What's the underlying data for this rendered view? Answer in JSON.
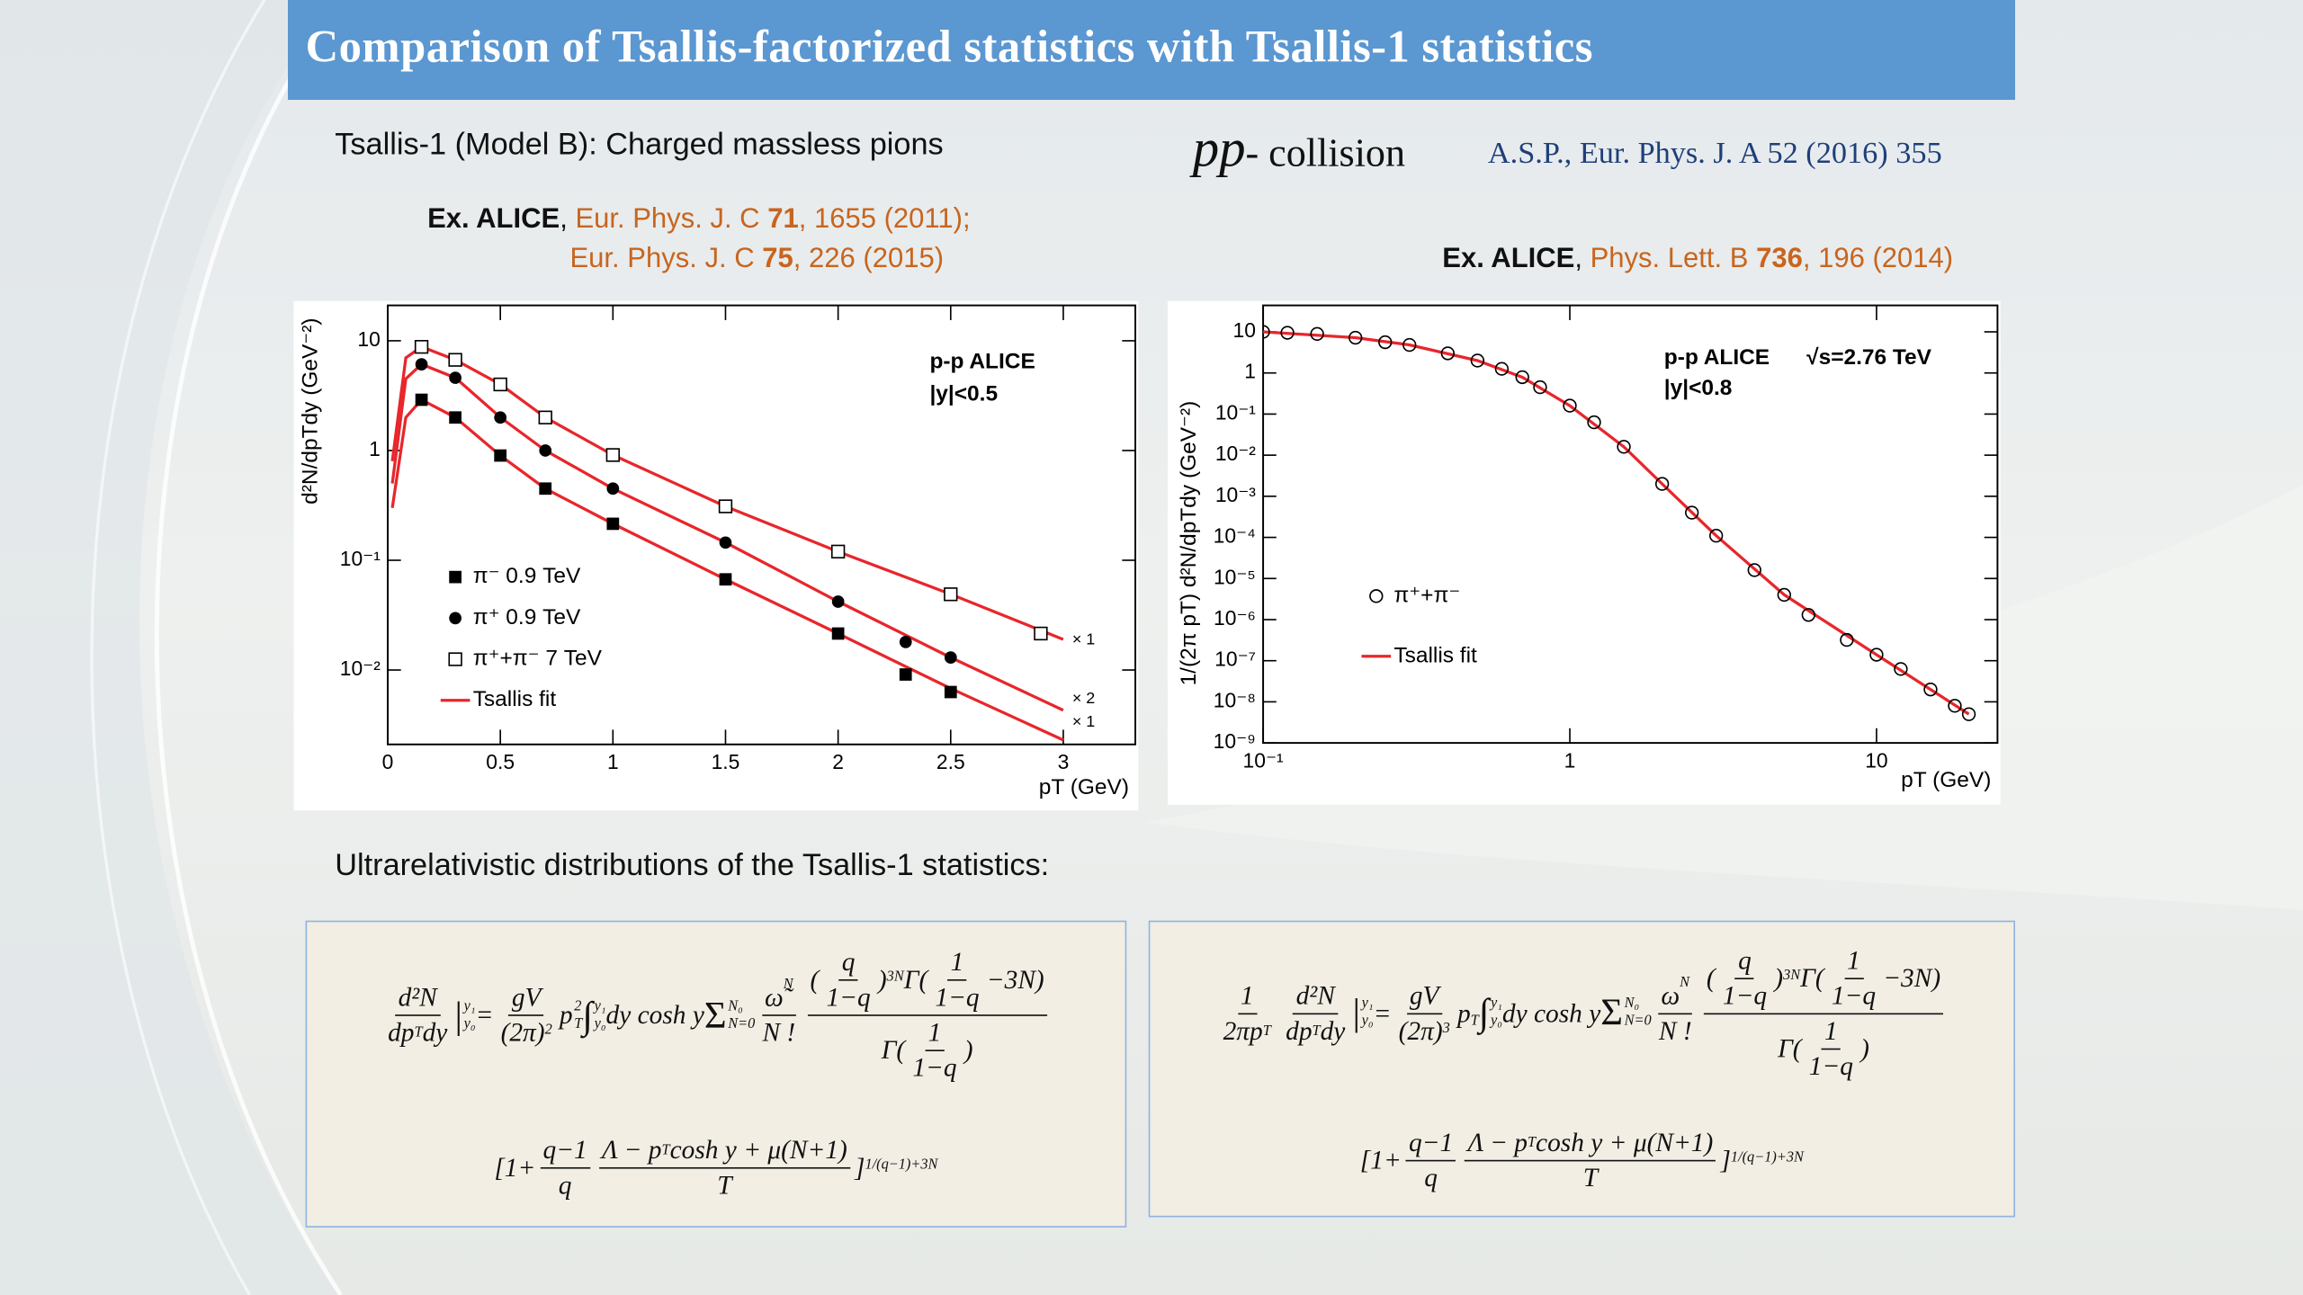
{
  "header": {
    "title": "Comparison of Tsallis-factorized statistics with Tsallis-1 statistics"
  },
  "subtitle": "Tsallis-1 (Model B): Charged massless pions",
  "collision": {
    "symbol": "pp",
    "text": "- collision"
  },
  "reference": "A.S.P., Eur. Phys. J. A 52 (2016) 355",
  "refs_left": {
    "line1": [
      "Ex. ALICE",
      ", ",
      "Eur. Phys. J. C ",
      "71",
      ", 1655 (2011);"
    ],
    "line2": [
      "Eur. Phys. J. C ",
      "75",
      ", 226 (2015)"
    ]
  },
  "refs_right": [
    "Ex. ALICE",
    ", ",
    "Phys. Lett. B ",
    "736",
    ", 196 (2014)"
  ],
  "section": "Ultrarelativistic distributions of the Tsallis-1 statistics:",
  "chart_data": [
    {
      "type": "scatter",
      "ylog": true,
      "xlim": [
        0,
        3.32
      ],
      "ylim": [
        0.0021,
        21
      ],
      "xticks": [
        0,
        0.5,
        1,
        1.5,
        2,
        2.5,
        3
      ],
      "yticks": [
        {
          "value": 0.01,
          "label": "10⁻²"
        },
        {
          "value": 0.1,
          "label": "10⁻¹"
        },
        1,
        10
      ],
      "xlabel": "pT (GeV)",
      "ylabel": "d²N/dpTdy (GeV⁻²)",
      "annotations": [
        "p-p  ALICE",
        "|y|<0.5",
        "× 1",
        "× 2",
        "× 1"
      ],
      "series": [
        {
          "name": "π⁻  0.9 TeV",
          "marker": "filled-square",
          "color": "#000000",
          "x": [
            0.15,
            0.3,
            0.5,
            0.7,
            1.0,
            1.5,
            2.0,
            2.3,
            2.5
          ],
          "values": [
            2.9,
            2.0,
            0.9,
            0.45,
            0.215,
            0.067,
            0.0215,
            0.0091,
            0.0063
          ]
        },
        {
          "name": "π⁺  0.9 TeV",
          "marker": "filled-circle",
          "color": "#000000",
          "x": [
            0.15,
            0.3,
            0.5,
            0.7,
            1.0,
            1.5,
            2.0,
            2.3,
            2.5
          ],
          "values": [
            6.1,
            4.6,
            2.0,
            1.0,
            0.45,
            0.145,
            0.042,
            0.018,
            0.013
          ]
        },
        {
          "name": "π⁺+π⁻  7 TeV",
          "marker": "open-square",
          "color": "#000000",
          "x": [
            0.15,
            0.3,
            0.5,
            0.7,
            1.0,
            1.5,
            2.0,
            2.5,
            2.9
          ],
          "values": [
            8.8,
            6.7,
            4.0,
            2.0,
            0.91,
            0.31,
            0.12,
            0.049,
            0.0215
          ]
        },
        {
          "name": "Tsallis fit",
          "color": "#e8262b",
          "curves": [
            {
              "x": [
                0.02,
                0.08,
                0.15,
                0.3,
                0.5,
                0.7,
                1,
                1.5,
                2,
                2.5,
                3
              ],
              "values": [
                0.3,
                2.0,
                2.9,
                2.0,
                0.9,
                0.45,
                0.215,
                0.067,
                0.0215,
                0.0068,
                0.0023
              ]
            },
            {
              "x": [
                0.02,
                0.08,
                0.15,
                0.3,
                0.5,
                0.7,
                1,
                1.5,
                2,
                2.5,
                3
              ],
              "values": [
                0.5,
                4.5,
                6.1,
                4.6,
                2.0,
                1.0,
                0.45,
                0.145,
                0.042,
                0.013,
                0.0043
              ]
            },
            {
              "x": [
                0.02,
                0.08,
                0.15,
                0.3,
                0.5,
                0.7,
                1,
                1.5,
                2,
                2.5,
                3
              ],
              "values": [
                0.8,
                7,
                8.8,
                6.7,
                4.0,
                2.0,
                0.91,
                0.31,
                0.12,
                0.049,
                0.019
              ]
            }
          ]
        }
      ]
    },
    {
      "type": "scatter",
      "xlog": true,
      "ylog": true,
      "xlim": [
        0.1,
        24.8
      ],
      "ylim": [
        1e-09,
        44
      ],
      "xticks": [
        {
          "value": 0.1,
          "label": "10⁻¹"
        },
        1,
        10
      ],
      "yticks": [
        10,
        1,
        {
          "value": 0.1,
          "label": "10⁻¹"
        },
        {
          "value": 0.01,
          "label": "10⁻²"
        },
        {
          "value": 0.001,
          "label": "10⁻³"
        },
        {
          "value": 0.0001,
          "label": "10⁻⁴"
        },
        {
          "value": 1e-05,
          "label": "10⁻⁵"
        },
        {
          "value": 1e-06,
          "label": "10⁻⁶"
        },
        {
          "value": 1e-07,
          "label": "10⁻⁷"
        },
        {
          "value": 1e-08,
          "label": "10⁻⁸"
        },
        {
          "value": 1e-09,
          "label": "10⁻⁹"
        }
      ],
      "xlabel": "pT (GeV)",
      "ylabel": "1/(2π pT) d²N/dpTdy (GeV⁻²)",
      "annotations": [
        "p-p  ALICE",
        "√s=2.76 TeV",
        "|y|<0.8"
      ],
      "series": [
        {
          "name": "π⁺+π⁻",
          "marker": "open-circle",
          "color": "#000000",
          "x": [
            0.1,
            0.12,
            0.15,
            0.2,
            0.25,
            0.3,
            0.4,
            0.5,
            0.6,
            0.7,
            0.8,
            1,
            1.2,
            1.5,
            2,
            2.5,
            3,
            4,
            5,
            6,
            8,
            10,
            12,
            15,
            18,
            20
          ],
          "values": [
            10,
            9.5,
            8.9,
            7.2,
            5.6,
            4.8,
            3.0,
            2.0,
            1.26,
            0.79,
            0.45,
            0.16,
            0.063,
            0.016,
            0.002,
            0.0004,
            0.00011,
            1.6e-05,
            4e-06,
            1.3e-06,
            3.2e-07,
            1.4e-07,
            6.3e-08,
            2e-08,
            8e-09,
            5e-09
          ]
        },
        {
          "name": "Tsallis fit",
          "color": "#e8262b",
          "x": [
            0.1,
            0.2,
            0.3,
            0.5,
            0.7,
            1,
            1.5,
            2,
            3,
            5,
            10,
            20
          ],
          "values": [
            10,
            7.2,
            4.8,
            2.0,
            0.79,
            0.16,
            0.016,
            0.002,
            0.00011,
            4e-06,
            1.4e-07,
            5e-09
          ]
        }
      ]
    }
  ],
  "equations": [
    {
      "lines": [
        [
          {
            "frac": [
              [
                "d²N"
              ],
              [
                "dp",
                {
                  "sub": "T"
                },
                "dy"
              ]
            ]
          },
          {
            "base": "|",
            "sup": "y₁",
            "sub": "y₀"
          },
          "=",
          {
            "frac": [
              [
                "gV"
              ],
              [
                "(2π)",
                {
                  "sup": "2"
                }
              ]
            ]
          },
          {
            "base": "p",
            "sup": "2",
            "sub": "T"
          },
          {
            "base": "∫",
            "sup": "y₁",
            "sub": "y₀"
          },
          "dy cosh y",
          {
            "base": "Σ",
            "sup": "N₀",
            "sub": "N=0"
          },
          {
            "frac": [
              [
                {
                  "base": "ω̃",
                  "sup": "N"
                }
              ],
              [
                "N !"
              ]
            ]
          },
          {
            "frac": [
              [
                "(",
                {
                  "frac": [
                    [
                      "q"
                    ],
                    [
                      "1−q"
                    ]
                  ]
                },
                ")",
                {
                  "sup": "3N"
                },
                "Γ(",
                {
                  "frac": [
                    [
                      "1"
                    ],
                    [
                      "1−q"
                    ]
                  ]
                },
                "−3N)"
              ],
              [
                "Γ(",
                {
                  "frac": [
                    [
                      "1"
                    ],
                    [
                      "1−q"
                    ]
                  ]
                },
                ")"
              ]
            ]
          }
        ],
        [
          "[1+",
          {
            "frac": [
              [
                "q−1"
              ],
              [
                "q"
              ]
            ]
          },
          {
            "frac": [
              [
                "Λ − p",
                {
                  "sub": "T"
                },
                " cosh y + μ(N+1)"
              ],
              [
                "T"
              ]
            ]
          },
          "]",
          {
            "sup": "1/(q−1)+3N"
          }
        ]
      ]
    },
    {
      "lines": [
        [
          {
            "frac": [
              [
                "1"
              ],
              [
                "2πp",
                {
                  "sub": "T"
                }
              ]
            ]
          },
          {
            "frac": [
              [
                "d²N"
              ],
              [
                "dp",
                {
                  "sub": "T"
                },
                "dy"
              ]
            ]
          },
          {
            "base": "|",
            "sup": "y₁",
            "sub": "y₀"
          },
          "=",
          {
            "frac": [
              [
                "gV"
              ],
              [
                "(2π)",
                {
                  "sup": "3"
                }
              ]
            ]
          },
          {
            "base": "p",
            "sub": "T"
          },
          {
            "base": "∫",
            "sup": "y₁",
            "sub": "y₀"
          },
          "dy cosh y",
          {
            "base": "Σ",
            "sup": "N₀",
            "sub": "N=0"
          },
          {
            "frac": [
              [
                {
                  "base": "ω",
                  "sup": "N"
                }
              ],
              [
                "N !"
              ]
            ]
          },
          {
            "frac": [
              [
                "(",
                {
                  "frac": [
                    [
                      "q"
                    ],
                    [
                      "1−q"
                    ]
                  ]
                },
                ")",
                {
                  "sup": "3N"
                },
                "Γ(",
                {
                  "frac": [
                    [
                      "1"
                    ],
                    [
                      "1−q"
                    ]
                  ]
                },
                "−3N)"
              ],
              [
                "Γ(",
                {
                  "frac": [
                    [
                      "1"
                    ],
                    [
                      "1−q"
                    ]
                  ]
                },
                ")"
              ]
            ]
          }
        ],
        [
          "[1+",
          {
            "frac": [
              [
                "q−1"
              ],
              [
                "q"
              ]
            ]
          },
          {
            "frac": [
              [
                "Λ − p",
                {
                  "sub": "T"
                },
                " cosh y + μ(N+1)"
              ],
              [
                "T"
              ]
            ]
          },
          "]",
          {
            "sup": "1/(q−1)+3N"
          }
        ]
      ]
    }
  ]
}
